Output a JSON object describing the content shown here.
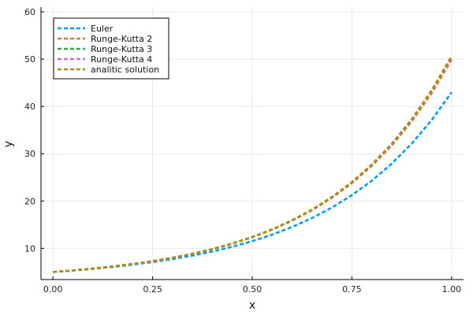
{
  "chart_data": {
    "type": "line",
    "title": "",
    "xlabel": "x",
    "ylabel": "y",
    "xlim": [
      0,
      1
    ],
    "ylim": [
      5,
      60
    ],
    "xticks": [
      0,
      0.25,
      0.5,
      0.75,
      1.0
    ],
    "xtick_labels": [
      "0.00",
      "0.25",
      "0.50",
      "0.75",
      "1.00"
    ],
    "yticks": [
      10,
      20,
      30,
      40,
      50,
      60
    ],
    "ytick_labels": [
      "10",
      "20",
      "30",
      "40",
      "50",
      "60"
    ],
    "grid": true,
    "legend_position": "top-left",
    "x": [
      0,
      0.05,
      0.1,
      0.15,
      0.2,
      0.25,
      0.3,
      0.35,
      0.4,
      0.45,
      0.5,
      0.55,
      0.6,
      0.65,
      0.7,
      0.75,
      0.8,
      0.85,
      0.9,
      0.95,
      1.0
    ],
    "series": [
      {
        "name": "Euler",
        "color": "#009af9",
        "values": [
          5.0,
          5.31,
          5.67,
          6.07,
          6.55,
          7.09,
          7.73,
          8.47,
          9.33,
          10.34,
          11.52,
          12.9,
          14.51,
          16.41,
          18.63,
          21.24,
          24.3,
          27.91,
          32.14,
          37.12,
          42.98
        ]
      },
      {
        "name": "Runge-Kutta 2",
        "color": "#e26f46",
        "values": [
          5.0,
          5.33,
          5.72,
          6.16,
          6.68,
          7.29,
          8.0,
          8.84,
          9.83,
          10.99,
          12.35,
          13.96,
          15.85,
          18.08,
          20.7,
          23.79,
          27.44,
          31.75,
          36.82,
          42.81,
          49.87
        ]
      },
      {
        "name": "Runge-Kutta 3",
        "color": "#3da44d",
        "values": [
          5.0,
          5.33,
          5.72,
          6.17,
          6.69,
          7.3,
          8.01,
          8.85,
          9.84,
          11.01,
          12.39,
          14.01,
          15.92,
          18.18,
          20.84,
          23.99,
          27.7,
          32.08,
          37.26,
          43.37,
          50.59
        ]
      },
      {
        "name": "Runge-Kutta 4",
        "color": "#c271d2",
        "values": [
          5.0,
          5.33,
          5.72,
          6.17,
          6.69,
          7.3,
          8.01,
          8.85,
          9.84,
          11.01,
          12.39,
          14.01,
          15.92,
          18.18,
          20.84,
          23.99,
          27.7,
          32.08,
          37.27,
          43.38,
          50.6
        ]
      },
      {
        "name": "analitic solution",
        "color": "#ac8e18",
        "values": [
          5.0,
          5.33,
          5.72,
          6.17,
          6.69,
          7.3,
          8.01,
          8.85,
          9.84,
          11.01,
          12.39,
          14.01,
          15.92,
          18.18,
          20.84,
          23.99,
          27.7,
          32.08,
          37.27,
          43.38,
          50.6
        ]
      }
    ]
  }
}
